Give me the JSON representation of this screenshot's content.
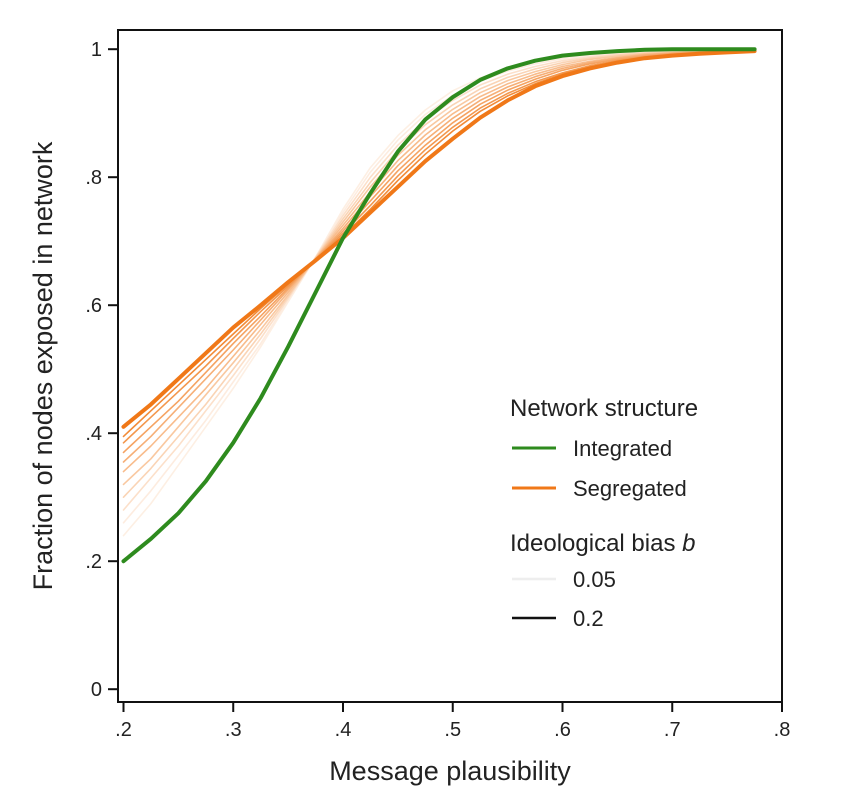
{
  "chart_data": {
    "type": "line",
    "title": "",
    "xlabel": "Message plausibility",
    "ylabel": "Fraction of nodes exposed in network",
    "xlim": [
      0.195,
      0.8
    ],
    "ylim": [
      -0.02,
      1.03
    ],
    "x_ticks": [
      {
        "value": 0.2,
        "label": ".2"
      },
      {
        "value": 0.3,
        "label": ".3"
      },
      {
        "value": 0.4,
        "label": ".4"
      },
      {
        "value": 0.5,
        "label": ".5"
      },
      {
        "value": 0.6,
        "label": ".6"
      },
      {
        "value": 0.7,
        "label": ".7"
      },
      {
        "value": 0.8,
        "label": ".8"
      }
    ],
    "y_ticks": [
      {
        "value": 0,
        "label": "0"
      },
      {
        "value": 0.2,
        "label": ".2"
      },
      {
        "value": 0.4,
        "label": ".4"
      },
      {
        "value": 0.6,
        "label": ".6"
      },
      {
        "value": 0.8,
        "label": ".8"
      },
      {
        "value": 1,
        "label": "1"
      }
    ],
    "grid": false,
    "colors": {
      "integrated": "#2e8b1e",
      "segregated": "#f07818"
    },
    "legend": {
      "placement": "lower-right",
      "structure_title": "Network structure",
      "structure_items": [
        {
          "label": "Integrated",
          "color": "#2e8b1e"
        },
        {
          "label": "Segregated",
          "color": "#f07818"
        }
      ],
      "bias_title_text": "Ideological bias ",
      "bias_title_var": "b",
      "bias_items": [
        {
          "label": "0.05",
          "shade": 0.05
        },
        {
          "label": "0.2",
          "shade": 1.0
        }
      ]
    },
    "x": [
      0.2,
      0.225,
      0.25,
      0.275,
      0.3,
      0.325,
      0.35,
      0.375,
      0.4,
      0.425,
      0.45,
      0.475,
      0.5,
      0.525,
      0.55,
      0.575,
      0.6,
      0.625,
      0.65,
      0.675,
      0.7,
      0.725,
      0.75,
      0.775
    ],
    "series": [
      {
        "name": "Integrated",
        "group": "integrated",
        "shade": 1.0,
        "values": [
          0.2,
          0.235,
          0.275,
          0.325,
          0.385,
          0.455,
          0.535,
          0.62,
          0.705,
          0.775,
          0.84,
          0.89,
          0.925,
          0.952,
          0.97,
          0.982,
          0.99,
          0.994,
          0.997,
          0.999,
          1.0,
          1.0,
          1.0,
          1.0
        ]
      },
      {
        "group": "segregated",
        "shade": 0.05,
        "values": [
          0.24,
          0.29,
          0.35,
          0.41,
          0.47,
          0.535,
          0.605,
          0.675,
          0.75,
          0.815,
          0.865,
          0.905,
          0.935,
          0.955,
          0.97,
          0.98,
          0.987,
          0.992,
          0.995,
          0.997,
          0.998,
          0.999,
          0.999,
          1.0
        ]
      },
      {
        "group": "segregated",
        "shade": 0.14,
        "values": [
          0.26,
          0.31,
          0.365,
          0.42,
          0.48,
          0.54,
          0.607,
          0.675,
          0.745,
          0.808,
          0.858,
          0.898,
          0.928,
          0.95,
          0.966,
          0.977,
          0.985,
          0.99,
          0.994,
          0.996,
          0.998,
          0.999,
          0.999,
          1.0
        ]
      },
      {
        "group": "segregated",
        "shade": 0.23,
        "values": [
          0.28,
          0.33,
          0.38,
          0.435,
          0.49,
          0.548,
          0.61,
          0.675,
          0.74,
          0.8,
          0.85,
          0.89,
          0.92,
          0.944,
          0.961,
          0.973,
          0.982,
          0.988,
          0.992,
          0.995,
          0.997,
          0.998,
          0.999,
          1.0
        ]
      },
      {
        "group": "segregated",
        "shade": 0.32,
        "values": [
          0.3,
          0.345,
          0.395,
          0.445,
          0.5,
          0.555,
          0.613,
          0.674,
          0.735,
          0.792,
          0.842,
          0.882,
          0.913,
          0.938,
          0.956,
          0.969,
          0.979,
          0.986,
          0.991,
          0.994,
          0.996,
          0.998,
          0.999,
          0.999
        ]
      },
      {
        "group": "segregated",
        "shade": 0.41,
        "values": [
          0.32,
          0.36,
          0.41,
          0.46,
          0.51,
          0.562,
          0.616,
          0.673,
          0.73,
          0.785,
          0.834,
          0.874,
          0.906,
          0.932,
          0.951,
          0.965,
          0.976,
          0.984,
          0.989,
          0.993,
          0.995,
          0.997,
          0.998,
          0.999
        ]
      },
      {
        "group": "segregated",
        "shade": 0.5,
        "values": [
          0.34,
          0.38,
          0.425,
          0.47,
          0.52,
          0.57,
          0.62,
          0.673,
          0.725,
          0.777,
          0.826,
          0.866,
          0.899,
          0.926,
          0.946,
          0.961,
          0.973,
          0.981,
          0.987,
          0.992,
          0.994,
          0.996,
          0.998,
          0.999
        ]
      },
      {
        "group": "segregated",
        "shade": 0.59,
        "values": [
          0.355,
          0.395,
          0.44,
          0.485,
          0.53,
          0.577,
          0.624,
          0.672,
          0.72,
          0.77,
          0.818,
          0.858,
          0.892,
          0.92,
          0.941,
          0.957,
          0.97,
          0.979,
          0.986,
          0.991,
          0.994,
          0.996,
          0.997,
          0.998
        ]
      },
      {
        "group": "segregated",
        "shade": 0.68,
        "values": [
          0.37,
          0.41,
          0.45,
          0.495,
          0.54,
          0.583,
          0.627,
          0.672,
          0.716,
          0.763,
          0.81,
          0.85,
          0.885,
          0.914,
          0.936,
          0.953,
          0.967,
          0.977,
          0.984,
          0.989,
          0.993,
          0.995,
          0.997,
          0.998
        ]
      },
      {
        "group": "segregated",
        "shade": 0.77,
        "values": [
          0.385,
          0.425,
          0.465,
          0.505,
          0.548,
          0.59,
          0.63,
          0.671,
          0.712,
          0.756,
          0.802,
          0.843,
          0.878,
          0.908,
          0.931,
          0.949,
          0.963,
          0.974,
          0.982,
          0.988,
          0.992,
          0.995,
          0.997,
          0.998
        ]
      },
      {
        "group": "segregated",
        "shade": 0.86,
        "values": [
          0.395,
          0.435,
          0.475,
          0.515,
          0.555,
          0.595,
          0.633,
          0.671,
          0.708,
          0.75,
          0.795,
          0.836,
          0.872,
          0.903,
          0.927,
          0.946,
          0.961,
          0.972,
          0.98,
          0.987,
          0.991,
          0.994,
          0.996,
          0.998
        ]
      },
      {
        "name": "Segregated",
        "group": "segregated",
        "shade": 1.0,
        "values": [
          0.41,
          0.445,
          0.485,
          0.525,
          0.565,
          0.6,
          0.636,
          0.67,
          0.705,
          0.745,
          0.785,
          0.825,
          0.86,
          0.893,
          0.92,
          0.942,
          0.958,
          0.97,
          0.979,
          0.986,
          0.99,
          0.993,
          0.995,
          0.997
        ]
      }
    ]
  }
}
